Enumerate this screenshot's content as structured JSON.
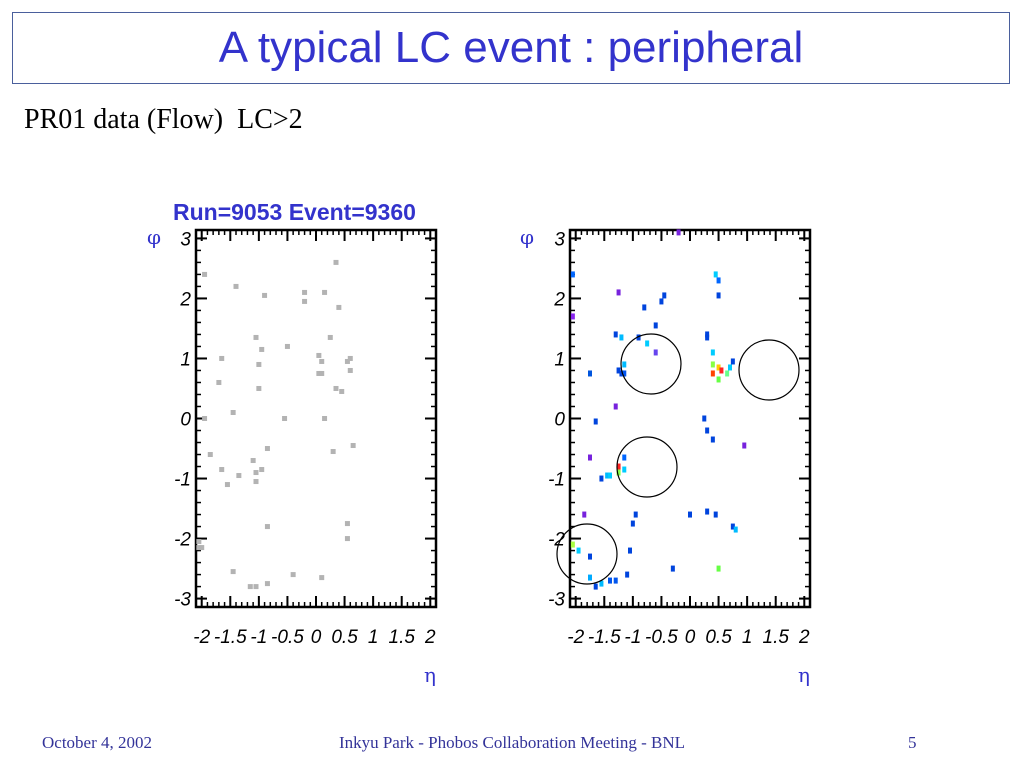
{
  "slide": {
    "title": "A typical LC event : peripheral",
    "subtitle": "PR01 data (Flow)  LC>2",
    "footer_left": "October 4, 2002",
    "footer_center": "Inkyu Park - Phobos Collaboration Meeting - BNL",
    "footer_right": "5",
    "colors": {
      "title": "#3333cc",
      "footer": "#333399",
      "frame": "#4a5f9c"
    }
  },
  "chart_data": [
    {
      "type": "scatter",
      "title": "Run=9053 Event=9360",
      "xlabel": "η",
      "ylabel": "φ",
      "xlim": [
        -2.1,
        2.1
      ],
      "ylim": [
        -3.14,
        3.14
      ],
      "xticks": [
        -2,
        -1.5,
        -1,
        -0.5,
        0,
        0.5,
        1,
        1.5,
        2
      ],
      "xtick_labels": [
        "-2",
        "-1.5",
        "-1",
        "-0.5",
        "0",
        "0.5",
        "1",
        "1.5",
        "2"
      ],
      "yticks": [
        3,
        2,
        1,
        0,
        -1,
        -2,
        -3
      ],
      "ytick_labels": [
        "3",
        "2",
        "1",
        "0",
        "-1",
        "-2",
        "-3"
      ],
      "grid": false,
      "point_color": "#b3b3b3",
      "points": [
        [
          -1.95,
          2.4
        ],
        [
          -1.65,
          1.0
        ],
        [
          -1.7,
          0.6
        ],
        [
          -1.45,
          0.1
        ],
        [
          -1.95,
          0.0
        ],
        [
          -1.85,
          -0.6
        ],
        [
          -1.65,
          -0.85
        ],
        [
          -1.55,
          -1.1
        ],
        [
          -1.4,
          2.2
        ],
        [
          -1.35,
          -0.95
        ],
        [
          -1.1,
          -0.7
        ],
        [
          -1.05,
          -0.9
        ],
        [
          -1.05,
          -1.05
        ],
        [
          -0.95,
          -0.85
        ],
        [
          -1.05,
          1.35
        ],
        [
          -1.0,
          0.9
        ],
        [
          -0.95,
          1.15
        ],
        [
          -1.0,
          0.5
        ],
        [
          -0.85,
          -0.5
        ],
        [
          -0.9,
          2.05
        ],
        [
          -0.85,
          -1.8
        ],
        [
          -0.5,
          1.2
        ],
        [
          -0.55,
          0.0
        ],
        [
          -0.2,
          2.1
        ],
        [
          -0.2,
          1.95
        ],
        [
          0.05,
          1.05
        ],
        [
          0.05,
          0.75
        ],
        [
          0.1,
          0.75
        ],
        [
          0.1,
          0.95
        ],
        [
          0.15,
          2.1
        ],
        [
          0.25,
          1.35
        ],
        [
          0.35,
          2.6
        ],
        [
          0.4,
          1.85
        ],
        [
          0.35,
          0.5
        ],
        [
          0.45,
          0.45
        ],
        [
          0.3,
          -0.55
        ],
        [
          0.15,
          0.0
        ],
        [
          0.55,
          0.95
        ],
        [
          0.6,
          1.0
        ],
        [
          0.6,
          0.8
        ],
        [
          0.65,
          -0.45
        ],
        [
          -1.45,
          -2.55
        ],
        [
          -1.15,
          -2.8
        ],
        [
          -1.05,
          -2.8
        ],
        [
          -0.85,
          -2.75
        ],
        [
          -0.4,
          -2.6
        ],
        [
          0.1,
          -2.65
        ],
        [
          0.55,
          -1.75
        ],
        [
          0.55,
          -2.0
        ],
        [
          -2.05,
          -2.05
        ],
        [
          -2.05,
          -2.15
        ],
        [
          -2.0,
          -2.15
        ]
      ],
      "annotations": []
    },
    {
      "type": "scatter",
      "title": "",
      "xlabel": "η",
      "ylabel": "φ",
      "xlim": [
        -2.1,
        2.1
      ],
      "ylim": [
        -3.14,
        3.14
      ],
      "xticks": [
        -2,
        -1.5,
        -1,
        -0.5,
        0,
        0.5,
        1,
        1.5,
        2
      ],
      "xtick_labels": [
        "-2",
        "-1.5",
        "-1",
        "-0.5",
        "0",
        "0.5",
        "1",
        "1.5",
        "2"
      ],
      "yticks": [
        3,
        2,
        1,
        0,
        -1,
        -2,
        -3
      ],
      "ytick_labels": [
        "3",
        "2",
        "1",
        "0",
        "-1",
        "-2",
        "-3"
      ],
      "grid": false,
      "points": [
        [
          -2.05,
          2.4,
          "#0066ff"
        ],
        [
          -2.05,
          1.7,
          "#8822ee"
        ],
        [
          -1.75,
          0.75,
          "#0055dd"
        ],
        [
          -1.3,
          1.4,
          "#0044dd"
        ],
        [
          -1.2,
          1.35,
          "#00bbff"
        ],
        [
          -1.15,
          0.9,
          "#00bbff"
        ],
        [
          -1.25,
          0.8,
          "#0044dd"
        ],
        [
          -1.2,
          0.75,
          "#0044dd"
        ],
        [
          -1.15,
          0.75,
          "#0055ee"
        ],
        [
          -0.9,
          1.35,
          "#0044dd"
        ],
        [
          -0.75,
          1.25,
          "#00ccff"
        ],
        [
          -0.6,
          1.1,
          "#6644ee"
        ],
        [
          -1.25,
          2.1,
          "#7722dd"
        ],
        [
          -0.8,
          1.85,
          "#0044dd"
        ],
        [
          -0.6,
          1.55,
          "#0044dd"
        ],
        [
          -0.5,
          1.95,
          "#0044dd"
        ],
        [
          -0.45,
          2.05,
          "#0044dd"
        ],
        [
          -1.3,
          0.2,
          "#7722dd"
        ],
        [
          -1.65,
          -0.05,
          "#0044dd"
        ],
        [
          -1.75,
          -0.65,
          "#7722dd"
        ],
        [
          -1.55,
          -1.0,
          "#0044dd"
        ],
        [
          -1.45,
          -0.95,
          "#00bbff"
        ],
        [
          -1.4,
          -0.95,
          "#00ccff"
        ],
        [
          -1.25,
          -0.8,
          "#ff2222"
        ],
        [
          -1.25,
          -0.9,
          "#88ff44"
        ],
        [
          -1.15,
          -0.65,
          "#0066ff"
        ],
        [
          -1.15,
          -0.85,
          "#00ccff"
        ],
        [
          -0.95,
          -1.6,
          "#0044dd"
        ],
        [
          -1.0,
          -1.75,
          "#0044dd"
        ],
        [
          -1.05,
          -2.2,
          "#0044dd"
        ],
        [
          -1.1,
          -2.6,
          "#0044dd"
        ],
        [
          -1.3,
          -2.7,
          "#0055ee"
        ],
        [
          -1.4,
          -2.7,
          "#0055ee"
        ],
        [
          -1.55,
          -2.75,
          "#00bbff"
        ],
        [
          -1.65,
          -2.8,
          "#0044dd"
        ],
        [
          -1.75,
          -2.65,
          "#00aaff"
        ],
        [
          -1.75,
          -2.3,
          "#0044dd"
        ],
        [
          -1.95,
          -2.2,
          "#00ccff"
        ],
        [
          -2.05,
          -2.1,
          "#aaff44"
        ],
        [
          -1.85,
          -1.6,
          "#7722dd"
        ],
        [
          0.45,
          2.4,
          "#00ccff"
        ],
        [
          0.5,
          2.3,
          "#0066ff"
        ],
        [
          0.5,
          2.05,
          "#0044dd"
        ],
        [
          0.3,
          1.4,
          "#0044dd"
        ],
        [
          0.3,
          1.35,
          "#0044dd"
        ],
        [
          0.4,
          1.1,
          "#00ccff"
        ],
        [
          0.4,
          0.9,
          "#88ff44"
        ],
        [
          0.5,
          0.85,
          "#ffcc00"
        ],
        [
          0.55,
          0.8,
          "#ff2222"
        ],
        [
          0.5,
          0.65,
          "#66ff44"
        ],
        [
          0.4,
          0.75,
          "#ff4400"
        ],
        [
          0.65,
          0.75,
          "#66ff88"
        ],
        [
          0.7,
          0.85,
          "#00ccff"
        ],
        [
          0.75,
          0.95,
          "#0044dd"
        ],
        [
          0.25,
          0.0,
          "#0044dd"
        ],
        [
          0.3,
          -0.2,
          "#0044dd"
        ],
        [
          0.4,
          -0.35,
          "#0044dd"
        ],
        [
          0.95,
          -0.45,
          "#7722dd"
        ],
        [
          0.0,
          -1.6,
          "#0044dd"
        ],
        [
          0.3,
          -1.55,
          "#0044dd"
        ],
        [
          0.45,
          -1.6,
          "#0044dd"
        ],
        [
          0.75,
          -1.8,
          "#0044dd"
        ],
        [
          0.8,
          -1.85,
          "#00bbff"
        ],
        [
          0.5,
          -2.5,
          "#66ff44"
        ],
        [
          -0.3,
          -2.5,
          "#0044dd"
        ],
        [
          -0.2,
          3.1,
          "#7722dd"
        ]
      ],
      "annotations": []
    }
  ]
}
